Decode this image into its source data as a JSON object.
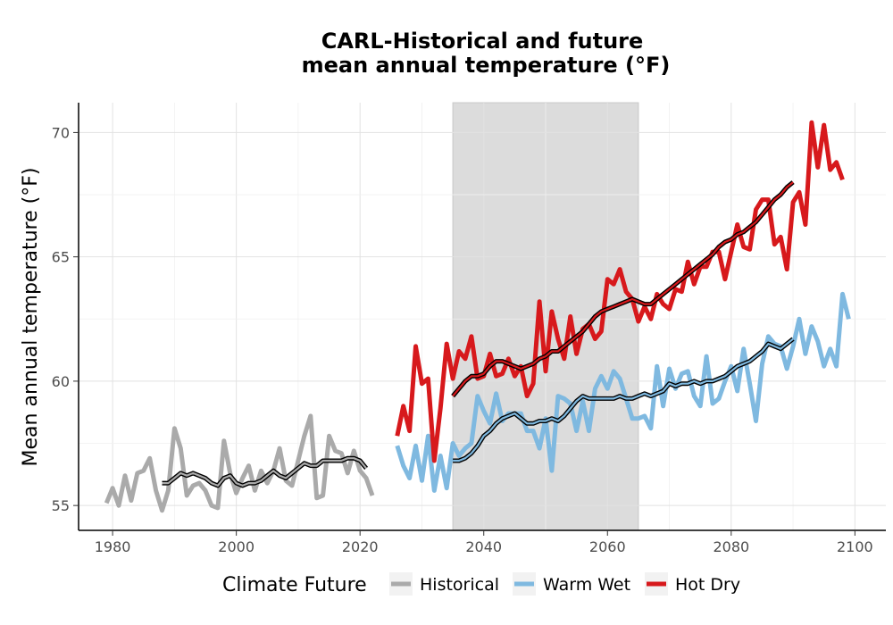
{
  "chart_data": {
    "type": "line",
    "title_line1": "CARL-Historical and future",
    "title_line2": "mean annual temperature (°F)",
    "xlabel": "",
    "ylabel": "Mean annual temperature (°F)",
    "xlim": [
      1974.5,
      2105
    ],
    "ylim": [
      54.0,
      71.2
    ],
    "x_ticks": [
      1980,
      2000,
      2020,
      2040,
      2060,
      2080,
      2100
    ],
    "y_ticks": [
      55,
      60,
      65,
      70
    ],
    "grid": true,
    "shaded_period": [
      2035,
      2065
    ],
    "shade_color": "#dcdcdc",
    "legend": {
      "title": "Climate Future",
      "position": "bottom",
      "items": [
        {
          "label": "Historical",
          "color": "#aaaaaa"
        },
        {
          "label": "Warm Wet",
          "color": "#7fb9e0"
        },
        {
          "label": "Hot Dry",
          "color": "#d7191c"
        }
      ]
    },
    "series": [
      {
        "name": "Historical",
        "color": "#aaaaaa",
        "x_start": 1979,
        "values": [
          55.1,
          55.7,
          55.0,
          56.2,
          55.2,
          56.3,
          56.4,
          56.9,
          55.6,
          54.8,
          55.6,
          58.1,
          57.3,
          55.4,
          55.8,
          55.9,
          55.6,
          55.0,
          54.9,
          57.6,
          56.3,
          55.5,
          56.1,
          56.6,
          55.6,
          56.4,
          55.9,
          56.4,
          57.3,
          56.0,
          55.8,
          56.8,
          57.8,
          58.6,
          55.3,
          55.4,
          57.8,
          57.2,
          57.1,
          56.3,
          57.2,
          56.4,
          56.1,
          55.4
        ],
        "smooth_x_start": 1988,
        "smooth": [
          55.9,
          55.9,
          56.1,
          56.3,
          56.2,
          56.3,
          56.2,
          56.1,
          55.9,
          55.8,
          56.1,
          56.2,
          55.9,
          55.8,
          55.9,
          55.9,
          56.0,
          56.2,
          56.4,
          56.2,
          56.1,
          56.3,
          56.5,
          56.7,
          56.6,
          56.6,
          56.8,
          56.8,
          56.8,
          56.8,
          56.9,
          56.9,
          56.8,
          56.5
        ]
      },
      {
        "name": "Warm Wet",
        "color": "#7fb9e0",
        "x_start": 2026,
        "values": [
          57.4,
          56.6,
          56.1,
          57.4,
          56.0,
          57.8,
          55.6,
          57.0,
          55.7,
          57.5,
          57.0,
          57.3,
          57.5,
          59.4,
          58.8,
          58.3,
          59.5,
          58.4,
          58.7,
          58.7,
          58.7,
          58.0,
          58.0,
          57.3,
          58.5,
          56.4,
          59.4,
          59.3,
          59.1,
          58.0,
          59.2,
          58.0,
          59.7,
          60.2,
          59.7,
          60.4,
          60.1,
          59.3,
          58.5,
          58.5,
          58.6,
          58.1,
          60.6,
          59.0,
          60.5,
          59.7,
          60.3,
          60.4,
          59.4,
          59.0,
          61.0,
          59.1,
          59.3,
          60.0,
          60.6,
          59.6,
          61.3,
          59.9,
          58.4,
          60.7,
          61.8,
          61.5,
          61.4,
          60.5,
          61.4,
          62.5,
          61.1,
          62.2,
          61.6,
          60.6,
          61.3,
          60.6,
          63.5,
          62.5
        ],
        "smooth_x_start": 2035,
        "smooth": [
          56.8,
          56.8,
          56.9,
          57.1,
          57.4,
          57.8,
          58.0,
          58.3,
          58.5,
          58.6,
          58.7,
          58.5,
          58.3,
          58.3,
          58.4,
          58.4,
          58.5,
          58.4,
          58.6,
          58.9,
          59.2,
          59.4,
          59.3,
          59.3,
          59.3,
          59.3,
          59.3,
          59.4,
          59.3,
          59.3,
          59.4,
          59.5,
          59.4,
          59.5,
          59.6,
          59.9,
          59.8,
          59.9,
          59.9,
          60.0,
          59.9,
          60.0,
          60.0,
          60.1,
          60.2,
          60.4,
          60.6,
          60.7,
          60.8,
          61.0,
          61.2,
          61.5,
          61.4,
          61.3,
          61.5,
          61.7
        ]
      },
      {
        "name": "Hot Dry",
        "color": "#d7191c",
        "x_start": 2026,
        "values": [
          57.8,
          59.0,
          58.0,
          61.4,
          59.9,
          60.1,
          56.8,
          58.9,
          61.5,
          60.1,
          61.2,
          60.9,
          61.8,
          60.1,
          60.2,
          61.1,
          60.2,
          60.3,
          60.9,
          60.2,
          60.6,
          59.4,
          59.9,
          63.2,
          60.4,
          62.8,
          61.7,
          60.9,
          62.6,
          61.1,
          62.1,
          62.3,
          61.7,
          62.0,
          64.1,
          63.9,
          64.5,
          63.6,
          63.3,
          62.4,
          63.0,
          62.5,
          63.5,
          63.1,
          62.9,
          63.7,
          63.6,
          64.8,
          63.9,
          64.6,
          64.6,
          65.2,
          65.2,
          64.1,
          65.2,
          66.3,
          65.4,
          65.3,
          66.9,
          67.3,
          67.3,
          65.5,
          65.8,
          64.5,
          67.2,
          67.6,
          66.3,
          70.4,
          68.6,
          70.3,
          68.5,
          68.8,
          68.1
        ],
        "smooth_x_start": 2035,
        "smooth": [
          59.4,
          59.7,
          60.0,
          60.2,
          60.2,
          60.3,
          60.6,
          60.8,
          60.8,
          60.7,
          60.6,
          60.5,
          60.6,
          60.7,
          60.9,
          61.0,
          61.2,
          61.2,
          61.4,
          61.6,
          61.8,
          62.0,
          62.3,
          62.6,
          62.8,
          62.9,
          63.0,
          63.1,
          63.2,
          63.3,
          63.2,
          63.1,
          63.1,
          63.3,
          63.5,
          63.7,
          63.9,
          64.1,
          64.3,
          64.5,
          64.7,
          64.9,
          65.1,
          65.4,
          65.6,
          65.7,
          65.9,
          66.0,
          66.2,
          66.4,
          66.7,
          67.0,
          67.3,
          67.5,
          67.8,
          68.0
        ]
      }
    ]
  }
}
